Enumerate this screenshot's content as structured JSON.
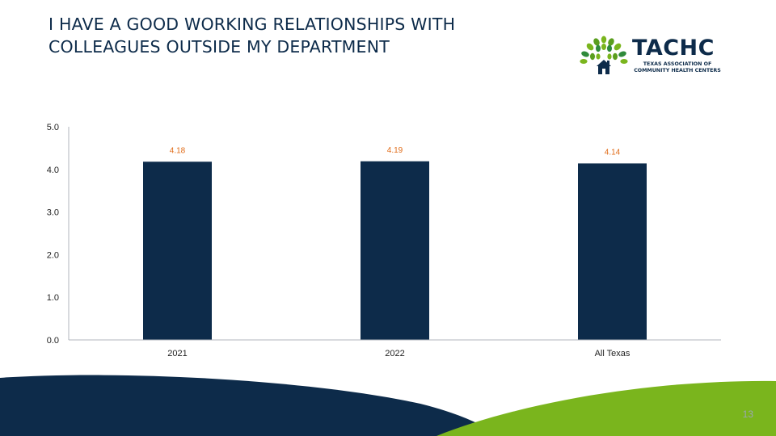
{
  "slide": {
    "title_lines": [
      "I HAVE A GOOD WORKING RELATIONSHIPS WITH",
      "COLLEAGUES OUTSIDE MY DEPARTMENT"
    ],
    "page_number": "13"
  },
  "logo": {
    "name": "TACHC",
    "subtitle_lines": [
      "TEXAS ASSOCIATION OF",
      "COMMUNITY HEALTH CENTERS"
    ],
    "icon": "tree-house-logo-icon"
  },
  "colors": {
    "bar": "#0d2b4a",
    "data_label": "#e06b17",
    "title": "#0d2b4a",
    "footer_navy": "#0d2b4a",
    "footer_green": "#7ab51d"
  },
  "chart_data": {
    "type": "bar",
    "categories": [
      "2021",
      "2022",
      "All Texas"
    ],
    "values": [
      4.18,
      4.19,
      4.14
    ],
    "data_labels": [
      "4.18",
      "4.19",
      "4.14"
    ],
    "yticks": [
      "0.0",
      "1.0",
      "2.0",
      "3.0",
      "4.0",
      "5.0"
    ],
    "ylim": [
      0,
      5
    ],
    "grid": false,
    "legend": "none"
  }
}
